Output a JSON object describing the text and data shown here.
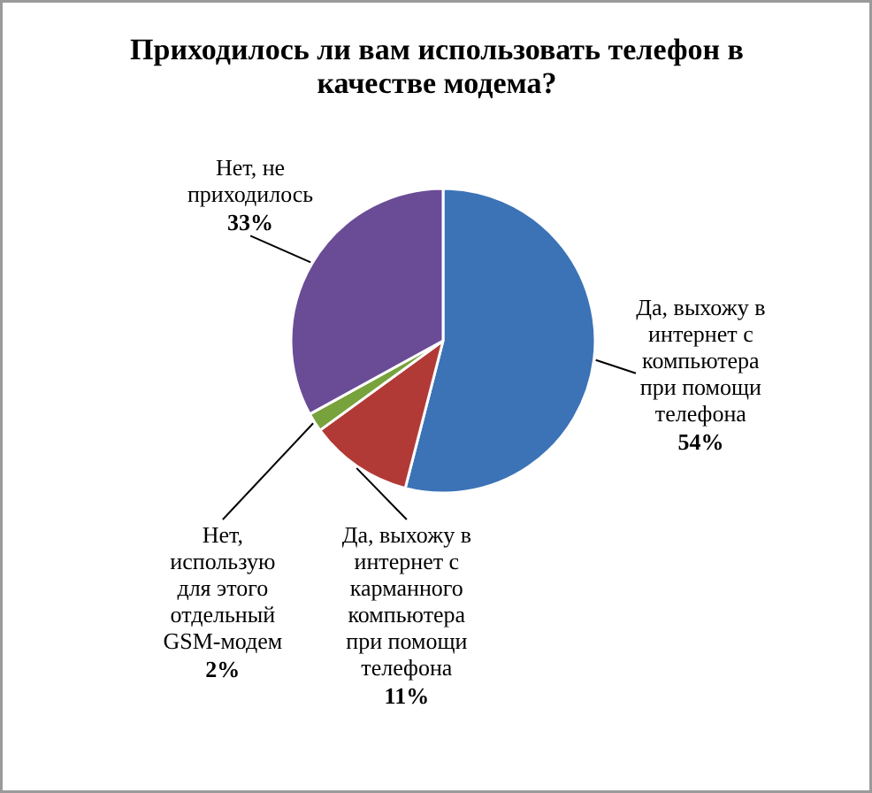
{
  "chart_data": {
    "type": "pie",
    "title": "Приходилось ли вам использовать телефон в качестве модема?",
    "categories": [
      "Да, выхожу в интернет с компьютера при помощи телефона",
      "Да, выхожу в интернет с карманного компьютера при помощи телефона",
      "Нет, использую для этого отдельный GSM-модем",
      "Нет, не приходилось"
    ],
    "values": [
      54,
      11,
      2,
      33
    ],
    "colors": [
      "#3c73b6",
      "#b23a36",
      "#78a23c",
      "#6a4c96"
    ],
    "value_labels": [
      "54%",
      "11%",
      "2%",
      "33%"
    ]
  }
}
